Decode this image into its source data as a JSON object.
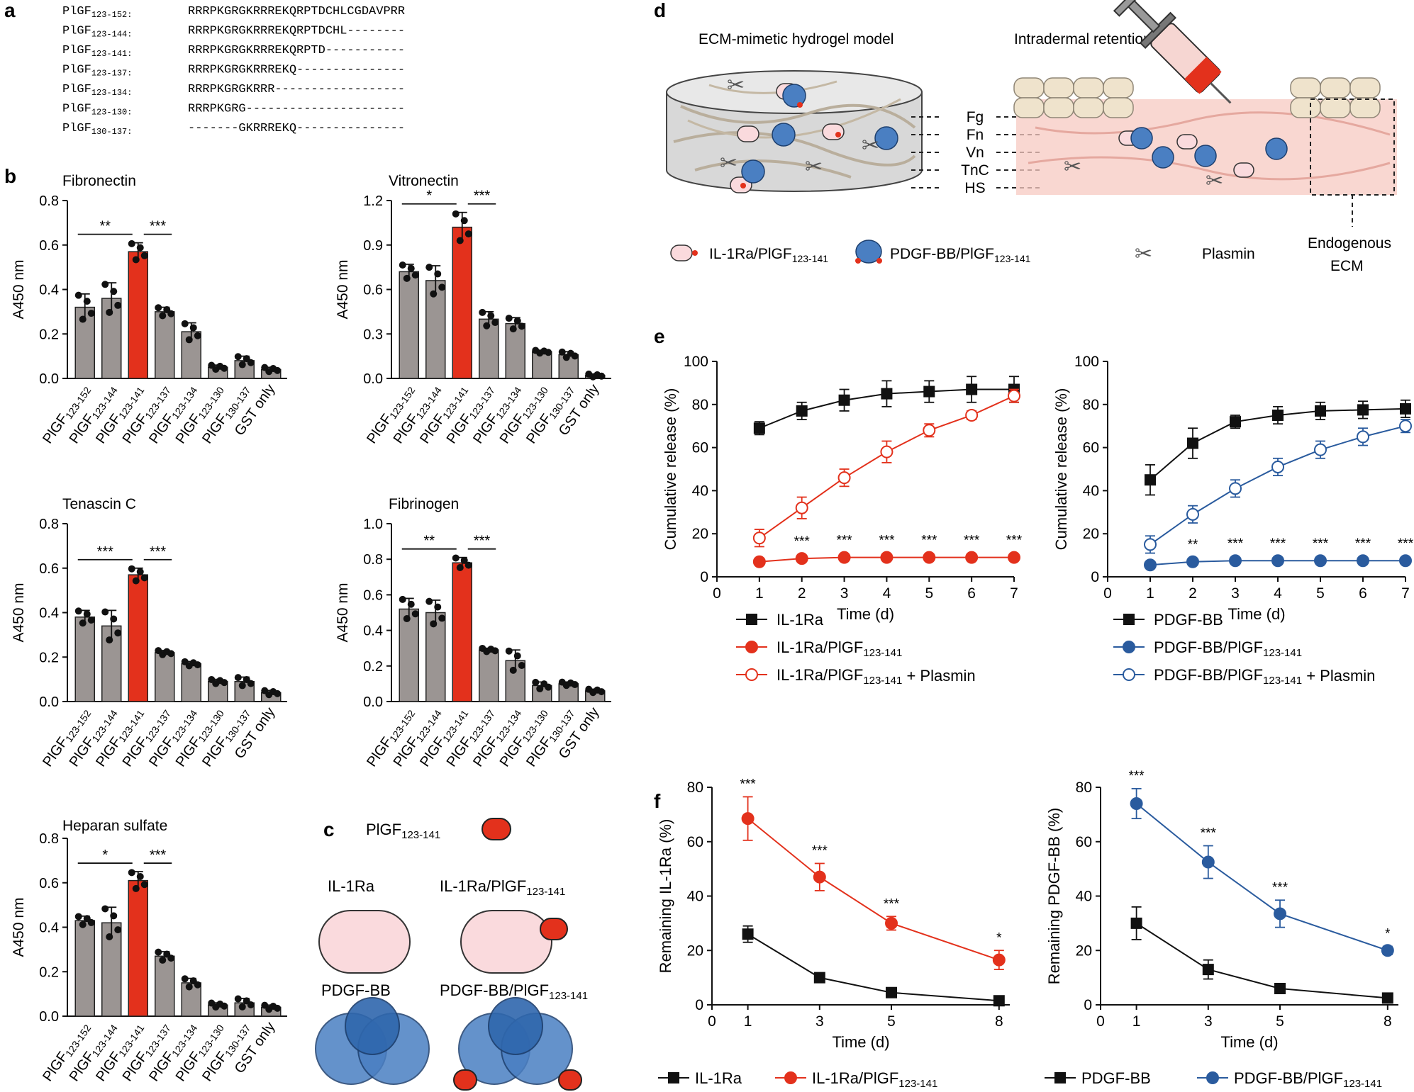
{
  "panel_labels": {
    "a": "a",
    "b": "b",
    "c": "c",
    "d": "d",
    "e": "e",
    "f": "f"
  },
  "sequences": [
    {
      "name": "PlGF",
      "sub": "123-152",
      "seq": "RRRPKGRGKRRREKQRPTDCHLCGDAVPRR"
    },
    {
      "name": "PlGF",
      "sub": "123-144",
      "seq": "RRRPKGRGKRRREKQRPTDCHL--------"
    },
    {
      "name": "PlGF",
      "sub": "123-141",
      "seq": "RRRPKGRGKRRREKQRPTD-----------"
    },
    {
      "name": "PlGF",
      "sub": "123-137",
      "seq": "RRRPKGRGKRRREKQ---------------"
    },
    {
      "name": "PlGF",
      "sub": "123-134",
      "seq": "RRRPKGRGKRRR------------------"
    },
    {
      "name": "PlGF",
      "sub": "123-130",
      "seq": "RRRPKGRG----------------------"
    },
    {
      "name": "PlGF",
      "sub": "130-137",
      "seq": "-------GKRRREKQ---------------"
    }
  ],
  "b_categories": [
    {
      "name": "PlGF",
      "sub": "123-152"
    },
    {
      "name": "PlGF",
      "sub": "123-144"
    },
    {
      "name": "PlGF",
      "sub": "123-141"
    },
    {
      "name": "PlGF",
      "sub": "123-137"
    },
    {
      "name": "PlGF",
      "sub": "123-134"
    },
    {
      "name": "PlGF",
      "sub": "123-130"
    },
    {
      "name": "PlGF",
      "sub": "130-137"
    },
    {
      "name": "GST only",
      "sub": ""
    }
  ],
  "c": {
    "plgf_label": {
      "name": "PlGF",
      "sub": "123-141"
    },
    "il1ra": "IL-1Ra",
    "il1ra_fusion": {
      "name": "IL-1Ra/PlGF",
      "sub": "123-141"
    },
    "pdgf": "PDGF-BB",
    "pdgf_fusion": {
      "name": "PDGF-BB/PlGF",
      "sub": "123-141"
    }
  },
  "d": {
    "left_title": "ECM-mimetic hydrogel model",
    "right_title": "Intradermal retention",
    "ecm_labels": [
      "Fg",
      "Fn",
      "Vn",
      "TnC",
      "HS"
    ],
    "legend": [
      {
        "name": "IL-1Ra/PlGF",
        "sub": "123-141"
      },
      {
        "name": "PDGF-BB/PlGF",
        "sub": "123-141"
      },
      {
        "name": "Plasmin",
        "sub": ""
      }
    ],
    "endogenous_line1": "Endogenous",
    "endogenous_line2": "ECM"
  },
  "e_legend_left": [
    {
      "name": "IL-1Ra",
      "sub": "",
      "suffix": ""
    },
    {
      "name": "IL-1Ra/PlGF",
      "sub": "123-141",
      "suffix": ""
    },
    {
      "name": "IL-1Ra/PlGF",
      "sub": "123-141",
      "suffix": " + Plasmin"
    }
  ],
  "e_legend_right": [
    {
      "name": "PDGF-BB",
      "sub": "",
      "suffix": ""
    },
    {
      "name": "PDGF-BB/PlGF",
      "sub": "123-141",
      "suffix": ""
    },
    {
      "name": "PDGF-BB/PlGF",
      "sub": "123-141",
      "suffix": " + Plasmin"
    }
  ],
  "f_legend_left": [
    {
      "name": "IL-1Ra",
      "sub": ""
    },
    {
      "name": "IL-1Ra/PlGF",
      "sub": "123-141"
    }
  ],
  "f_legend_right": [
    {
      "name": "PDGF-BB",
      "sub": ""
    },
    {
      "name": "PDGF-BB/PlGF",
      "sub": "123-141"
    }
  ],
  "colors": {
    "gray_bar": "#9b9593",
    "red": "#e3311c",
    "blue": "#2a5b9e",
    "black": "#111111",
    "pink": "#fadadd",
    "skin": "#f7c9c2"
  },
  "chart_data": [
    {
      "type": "bar",
      "title": "Fibronectin",
      "ylabel": "A450 nm",
      "ylim": [
        0,
        0.8
      ],
      "yticks": [
        "0.0",
        "0.2",
        "0.4",
        "0.6",
        "0.8"
      ],
      "values": [
        0.32,
        0.36,
        0.57,
        0.3,
        0.21,
        0.05,
        0.08,
        0.04
      ],
      "errors": [
        0.06,
        0.07,
        0.04,
        0.02,
        0.04,
        0.01,
        0.02,
        0.01
      ],
      "highlight_index": 2,
      "significance": [
        {
          "label": "**",
          "from": 0,
          "to": 2
        },
        {
          "label": "***",
          "from": 2,
          "to": 3
        }
      ]
    },
    {
      "type": "bar",
      "title": "Vitronectin",
      "ylabel": "A450 nm",
      "ylim": [
        0,
        1.2
      ],
      "yticks": [
        "0.0",
        "0.3",
        "0.6",
        "0.9",
        "1.2"
      ],
      "values": [
        0.72,
        0.66,
        1.02,
        0.4,
        0.37,
        0.18,
        0.16,
        0.02
      ],
      "errors": [
        0.05,
        0.1,
        0.1,
        0.05,
        0.04,
        0.01,
        0.02,
        0.01
      ],
      "highlight_index": 2,
      "significance": [
        {
          "label": "*",
          "from": 0,
          "to": 2
        },
        {
          "label": "***",
          "from": 2,
          "to": 3
        }
      ]
    },
    {
      "type": "bar",
      "title": "Tenascin C",
      "ylabel": "A450 nm",
      "ylim": [
        0,
        0.8
      ],
      "yticks": [
        "0.0",
        "0.2",
        "0.4",
        "0.6",
        "0.8"
      ],
      "values": [
        0.38,
        0.34,
        0.57,
        0.22,
        0.17,
        0.09,
        0.09,
        0.04
      ],
      "errors": [
        0.03,
        0.07,
        0.03,
        0.01,
        0.01,
        0.01,
        0.02,
        0.01
      ],
      "highlight_index": 2,
      "significance": [
        {
          "label": "***",
          "from": 0,
          "to": 2
        },
        {
          "label": "***",
          "from": 2,
          "to": 3
        }
      ]
    },
    {
      "type": "bar",
      "title": "Fibrinogen",
      "ylabel": "A450 nm",
      "ylim": [
        0,
        1.0
      ],
      "yticks": [
        "0.0",
        "0.2",
        "0.4",
        "0.6",
        "0.8",
        "1.0"
      ],
      "values": [
        0.52,
        0.5,
        0.78,
        0.29,
        0.23,
        0.09,
        0.1,
        0.06
      ],
      "errors": [
        0.06,
        0.07,
        0.03,
        0.01,
        0.06,
        0.02,
        0.01,
        0.01
      ],
      "highlight_index": 2,
      "significance": [
        {
          "label": "**",
          "from": 0,
          "to": 2
        },
        {
          "label": "***",
          "from": 2,
          "to": 3
        }
      ]
    },
    {
      "type": "bar",
      "title": "Heparan sulfate",
      "ylabel": "A450 nm",
      "ylim": [
        0,
        0.8
      ],
      "yticks": [
        "0.0",
        "0.2",
        "0.4",
        "0.6",
        "0.8"
      ],
      "values": [
        0.43,
        0.42,
        0.61,
        0.27,
        0.15,
        0.05,
        0.06,
        0.04
      ],
      "errors": [
        0.02,
        0.07,
        0.04,
        0.02,
        0.02,
        0.01,
        0.02,
        0.01
      ],
      "highlight_index": 2,
      "significance": [
        {
          "label": "*",
          "from": 0,
          "to": 2
        },
        {
          "label": "***",
          "from": 2,
          "to": 3
        }
      ]
    },
    {
      "type": "line",
      "xlabel": "Time (d)",
      "ylabel": "Cumulative release (%)",
      "xlim": [
        0,
        7
      ],
      "ylim": [
        0,
        100
      ],
      "xticks": [
        "0",
        "1",
        "2",
        "3",
        "4",
        "5",
        "6",
        "7"
      ],
      "yticks": [
        "0",
        "20",
        "40",
        "60",
        "80",
        "100"
      ],
      "x": [
        1,
        2,
        3,
        4,
        5,
        6,
        7
      ],
      "series": [
        {
          "name": "IL-1Ra",
          "values": [
            69,
            77,
            82,
            85,
            86,
            87,
            87
          ],
          "errors": [
            3,
            4,
            5,
            6,
            5,
            6,
            6
          ],
          "style": "square-black"
        },
        {
          "name": "IL-1Ra/PlGF123-141",
          "values": [
            7,
            8.5,
            9,
            9,
            9,
            9,
            9
          ],
          "errors": [
            1,
            1,
            1,
            1,
            1,
            1,
            1
          ],
          "style": "circle-filled-red"
        },
        {
          "name": "IL-1Ra/PlGF123-141 + Plasmin",
          "values": [
            18,
            32,
            46,
            58,
            68,
            75,
            84
          ],
          "errors": [
            4,
            5,
            4,
            5,
            3,
            2,
            3
          ],
          "style": "circle-open-red"
        }
      ],
      "sig_labels": [
        "***",
        "***",
        "***",
        "***",
        "***",
        "***"
      ],
      "sig_x": [
        2,
        3,
        4,
        5,
        6,
        7
      ]
    },
    {
      "type": "line",
      "xlabel": "Time (d)",
      "ylabel": "Cumulative release (%)",
      "xlim": [
        0,
        7
      ],
      "ylim": [
        0,
        100
      ],
      "xticks": [
        "0",
        "1",
        "2",
        "3",
        "4",
        "5",
        "6",
        "7"
      ],
      "yticks": [
        "0",
        "20",
        "40",
        "60",
        "80",
        "100"
      ],
      "x": [
        1,
        2,
        3,
        4,
        5,
        6,
        7
      ],
      "series": [
        {
          "name": "PDGF-BB",
          "values": [
            45,
            62,
            72,
            75,
            77,
            77.5,
            78
          ],
          "errors": [
            7,
            7,
            3,
            4,
            4,
            4,
            4
          ],
          "style": "square-black"
        },
        {
          "name": "PDGF-BB/PlGF123-141",
          "values": [
            5.5,
            7,
            7.5,
            7.5,
            7.5,
            7.5,
            7.5
          ],
          "errors": [
            1,
            1,
            1,
            1,
            1,
            1,
            1
          ],
          "style": "circle-filled-blue"
        },
        {
          "name": "PDGF-BB/PlGF123-141 + Plasmin",
          "values": [
            15,
            29,
            41,
            51,
            59,
            65,
            70
          ],
          "errors": [
            4,
            4,
            4,
            4,
            4,
            4,
            3
          ],
          "style": "circle-open-blue"
        }
      ],
      "sig_labels": [
        "**",
        "***",
        "***",
        "***",
        "***",
        "***"
      ],
      "sig_x": [
        2,
        3,
        4,
        5,
        6,
        7
      ]
    },
    {
      "type": "line",
      "xlabel": "Time (d)",
      "ylabel": "Remaining IL-1Ra (%)",
      "xlim": [
        0,
        8.3
      ],
      "ylim": [
        0,
        80
      ],
      "xtick_values": [
        0,
        1,
        3,
        5,
        8
      ],
      "xticks": [
        "0",
        "1",
        "3",
        "5",
        "8"
      ],
      "yticks": [
        "0",
        "20",
        "40",
        "60",
        "80"
      ],
      "x": [
        1,
        3,
        5,
        8
      ],
      "series": [
        {
          "name": "IL-1Ra",
          "values": [
            26,
            10,
            4.5,
            1.5
          ],
          "errors": [
            3,
            1.5,
            0.5,
            0.5
          ],
          "style": "square-black"
        },
        {
          "name": "IL-1Ra/PlGF123-141",
          "values": [
            68.5,
            47,
            30,
            16.5
          ],
          "errors": [
            8,
            5,
            2.5,
            3.5
          ],
          "style": "circle-filled-red"
        }
      ],
      "sig_labels": [
        "***",
        "***",
        "***",
        "*"
      ],
      "sig_x": [
        1,
        3,
        5,
        8
      ]
    },
    {
      "type": "line",
      "xlabel": "Time (d)",
      "ylabel": "Remaining PDGF-BB (%)",
      "xlim": [
        0,
        8.3
      ],
      "ylim": [
        0,
        80
      ],
      "xtick_values": [
        0,
        1,
        3,
        5,
        8
      ],
      "xticks": [
        "0",
        "1",
        "3",
        "5",
        "8"
      ],
      "yticks": [
        "0",
        "20",
        "40",
        "60",
        "80"
      ],
      "x": [
        1,
        3,
        5,
        8
      ],
      "series": [
        {
          "name": "PDGF-BB",
          "values": [
            30,
            13,
            6,
            2.5
          ],
          "errors": [
            6,
            3.5,
            0.5,
            0.5
          ],
          "style": "square-black"
        },
        {
          "name": "PDGF-BB/PlGF123-141",
          "values": [
            74,
            52.5,
            33.5,
            20
          ],
          "errors": [
            5.5,
            6,
            5,
            1.5
          ],
          "style": "circle-filled-blue"
        }
      ],
      "sig_labels": [
        "***",
        "***",
        "***",
        "*"
      ],
      "sig_x": [
        1,
        3,
        5,
        8
      ]
    }
  ]
}
